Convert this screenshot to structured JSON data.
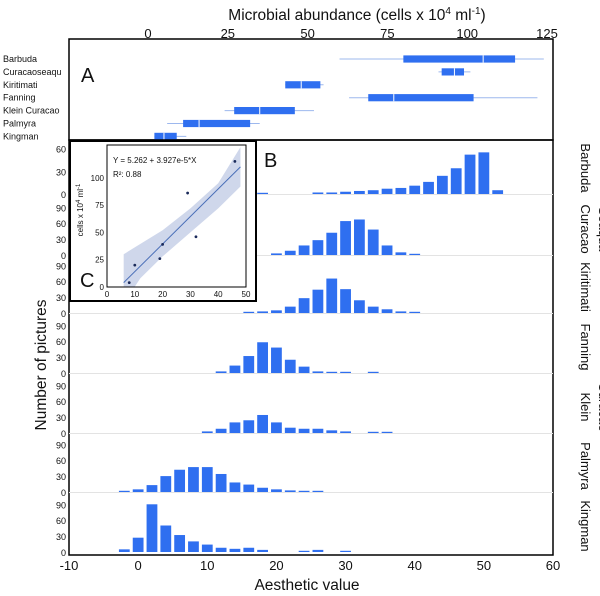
{
  "figure": {
    "title": "Microbial abundance (cells x 10",
    "title_sup": "4",
    "title_rest": " ml",
    "title_sup2": "-1",
    "title_close": ")",
    "xlabel": "Aesthetic value",
    "ylabel": "Number of pictures",
    "panel_labels": {
      "a": "A",
      "b": "B",
      "c": "C"
    },
    "accent_color": "#2f6ff0"
  },
  "chart_data": [
    {
      "panel": "A",
      "type": "boxplot",
      "xlim": [
        -10,
        125
      ],
      "xticks": [
        0,
        25,
        50,
        75,
        100,
        125
      ],
      "orientation": "horizontal",
      "items": [
        {
          "label": "Barbuda",
          "whisker": [
            60,
            124
          ],
          "box": [
            80,
            115
          ],
          "median": 105
        },
        {
          "label": "Curacaoseaqu",
          "whisker": [
            91,
            101
          ],
          "box": [
            92,
            99
          ],
          "median": 96
        },
        {
          "label": "Kiritimati",
          "whisker": [
            43,
            55
          ],
          "box": [
            43,
            54
          ],
          "median": 48
        },
        {
          "label": "Fanning",
          "whisker": [
            63,
            122
          ],
          "box": [
            69,
            102
          ],
          "median": 77
        },
        {
          "label": "Klein Curacao",
          "whisker": [
            24,
            52
          ],
          "box": [
            27,
            46
          ],
          "median": 35
        },
        {
          "label": "Palmyra",
          "whisker": [
            6,
            35
          ],
          "box": [
            11,
            32
          ],
          "median": 16
        },
        {
          "label": "Kingman",
          "whisker": [
            2,
            12
          ],
          "box": [
            2,
            9
          ],
          "median": 5
        }
      ]
    },
    {
      "panel": "B",
      "type": "bar",
      "xlim": [
        -10,
        60
      ],
      "xticks": [
        -10,
        0,
        10,
        20,
        30,
        40,
        50,
        60
      ],
      "bin_centers": [
        0,
        2,
        4,
        6,
        8,
        10,
        12,
        14,
        16,
        18,
        20,
        22,
        24,
        26,
        28,
        30,
        32,
        34,
        36,
        38,
        40,
        42,
        44,
        46,
        48,
        50,
        52
      ],
      "series": [
        {
          "name": "Barbuda",
          "label_lines": [
            "Barbuda"
          ],
          "yticks": [
            0,
            30,
            60
          ],
          "ylim": [
            0,
            70
          ],
          "values": [
            0,
            0,
            0,
            0,
            0,
            0,
            0,
            0,
            0,
            0,
            0,
            0,
            0,
            0,
            0,
            0,
            0,
            0,
            0,
            0,
            0,
            0,
            0,
            0,
            0,
            0,
            0
          ],
          "bars": [
            [
              18,
              1
            ],
            [
              26,
              2
            ],
            [
              28,
              2
            ],
            [
              30,
              3
            ],
            [
              32,
              4
            ],
            [
              34,
              5
            ],
            [
              36,
              7
            ],
            [
              38,
              8
            ],
            [
              40,
              11
            ],
            [
              42,
              16
            ],
            [
              44,
              24
            ],
            [
              46,
              34
            ],
            [
              48,
              52
            ],
            [
              50,
              55
            ],
            [
              52,
              5
            ]
          ]
        },
        {
          "name": "Curacao Seaqua",
          "label_lines": [
            "Curacao",
            "Seaqua"
          ],
          "yticks": [
            0,
            30,
            60,
            90
          ],
          "ylim": [
            0,
            100
          ],
          "bars": [
            [
              14,
              1
            ],
            [
              20,
              3
            ],
            [
              22,
              8
            ],
            [
              24,
              18
            ],
            [
              26,
              28
            ],
            [
              28,
              42
            ],
            [
              30,
              64
            ],
            [
              32,
              67
            ],
            [
              34,
              48
            ],
            [
              36,
              18
            ],
            [
              38,
              5
            ],
            [
              40,
              2
            ]
          ]
        },
        {
          "name": "Kiritimati",
          "label_lines": [
            "Kiritimati"
          ],
          "yticks": [
            0,
            30,
            60,
            90
          ],
          "ylim": [
            0,
            100
          ],
          "bars": [
            [
              16,
              1
            ],
            [
              18,
              3
            ],
            [
              20,
              5
            ],
            [
              22,
              12
            ],
            [
              24,
              28
            ],
            [
              26,
              44
            ],
            [
              28,
              65
            ],
            [
              30,
              45
            ],
            [
              32,
              24
            ],
            [
              34,
              12
            ],
            [
              36,
              7
            ],
            [
              38,
              3
            ],
            [
              40,
              1
            ]
          ]
        },
        {
          "name": "Fanning",
          "label_lines": [
            "Fanning"
          ],
          "yticks": [
            0,
            30,
            60,
            90
          ],
          "ylim": [
            0,
            100
          ],
          "bars": [
            [
              12,
              3
            ],
            [
              14,
              14
            ],
            [
              16,
              32
            ],
            [
              18,
              58
            ],
            [
              20,
              48
            ],
            [
              22,
              25
            ],
            [
              24,
              12
            ],
            [
              26,
              3
            ],
            [
              28,
              2
            ],
            [
              30,
              1
            ],
            [
              32,
              0
            ],
            [
              34,
              1
            ]
          ]
        },
        {
          "name": "Klein Curacao",
          "label_lines": [
            "Klein",
            "Curacao"
          ],
          "yticks": [
            0,
            30,
            60,
            90
          ],
          "ylim": [
            0,
            100
          ],
          "bars": [
            [
              10,
              3
            ],
            [
              12,
              8
            ],
            [
              14,
              20
            ],
            [
              16,
              24
            ],
            [
              18,
              34
            ],
            [
              20,
              20
            ],
            [
              22,
              10
            ],
            [
              24,
              8
            ],
            [
              26,
              8
            ],
            [
              28,
              5
            ],
            [
              30,
              3
            ],
            [
              34,
              1
            ],
            [
              36,
              1
            ]
          ]
        },
        {
          "name": "Palmyra",
          "label_lines": [
            "Palmyra"
          ],
          "yticks": [
            0,
            30,
            60,
            90
          ],
          "ylim": [
            0,
            100
          ],
          "bars": [
            [
              -2,
              2
            ],
            [
              0,
              5
            ],
            [
              2,
              13
            ],
            [
              4,
              30
            ],
            [
              6,
              42
            ],
            [
              8,
              47
            ],
            [
              10,
              47
            ],
            [
              12,
              34
            ],
            [
              14,
              18
            ],
            [
              16,
              14
            ],
            [
              18,
              8
            ],
            [
              20,
              5
            ],
            [
              22,
              3
            ],
            [
              24,
              2
            ],
            [
              26,
              1
            ]
          ]
        },
        {
          "name": "Kingman",
          "label_lines": [
            "Kingman"
          ],
          "yticks": [
            0,
            30,
            60,
            90
          ],
          "ylim": [
            0,
            100
          ],
          "bars": [
            [
              -2,
              5
            ],
            [
              0,
              27
            ],
            [
              2,
              90
            ],
            [
              4,
              50
            ],
            [
              6,
              32
            ],
            [
              8,
              20
            ],
            [
              10,
              14
            ],
            [
              12,
              8
            ],
            [
              14,
              6
            ],
            [
              16,
              8
            ],
            [
              18,
              4
            ],
            [
              24,
              1
            ],
            [
              26,
              4
            ],
            [
              30,
              1
            ]
          ]
        }
      ]
    },
    {
      "panel": "C",
      "type": "scatter",
      "xlim": [
        0,
        50
      ],
      "ylim": [
        0,
        130
      ],
      "xticks": [
        0,
        10,
        20,
        30,
        40,
        50
      ],
      "yticks": [
        0,
        25,
        50,
        75,
        100
      ],
      "ylabel": "cells x 10",
      "ylabel_sup": "4",
      "ylabel_rest": " ml",
      "ylabel_sup2": "-1",
      "equation": "Y = 5.262 + 3.927e-5*X",
      "r2": "R²: 0.88",
      "points": [
        [
          8,
          4
        ],
        [
          10,
          20
        ],
        [
          19,
          26
        ],
        [
          20,
          39
        ],
        [
          29,
          86
        ],
        [
          32,
          46
        ],
        [
          46,
          115
        ]
      ],
      "fit": [
        [
          6,
          4
        ],
        [
          48,
          110
        ]
      ],
      "ci_upper": [
        [
          6,
          30
        ],
        [
          20,
          52
        ],
        [
          30,
          72
        ],
        [
          40,
          95
        ],
        [
          48,
          128
        ]
      ],
      "ci_lower": [
        [
          6,
          -15
        ],
        [
          12,
          8
        ],
        [
          20,
          28
        ],
        [
          30,
          50
        ],
        [
          40,
          72
        ],
        [
          48,
          92
        ]
      ]
    }
  ]
}
